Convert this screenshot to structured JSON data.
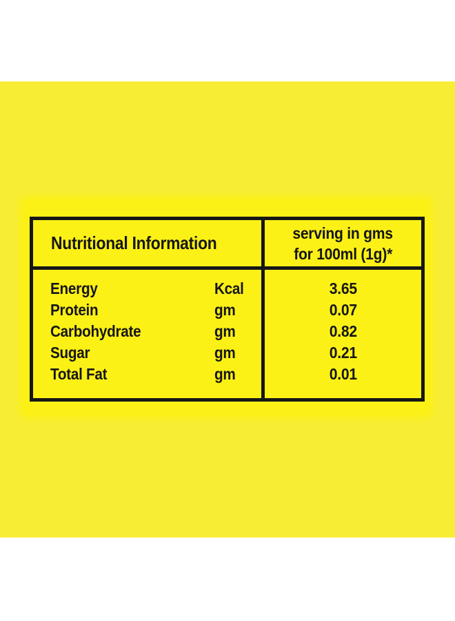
{
  "colors": {
    "canvas": "#ffffff",
    "background_yellow": "#F8ED35",
    "label_patch_yellow": "#FCF116",
    "ink": "#161616"
  },
  "table": {
    "header": {
      "left": "Nutritional Information",
      "right_line1": "serving in gms",
      "right_line2": "for 100ml (1g)*"
    },
    "rows": [
      {
        "label": "Energy",
        "unit": "Kcal",
        "value": "3.65"
      },
      {
        "label": "Protein",
        "unit": "gm",
        "value": "0.07"
      },
      {
        "label": "Carbohydrate",
        "unit": "gm",
        "value": "0.82"
      },
      {
        "label": "Sugar",
        "unit": "gm",
        "value": "0.21"
      },
      {
        "label": "Total Fat",
        "unit": "gm",
        "value": "0.01"
      }
    ]
  }
}
